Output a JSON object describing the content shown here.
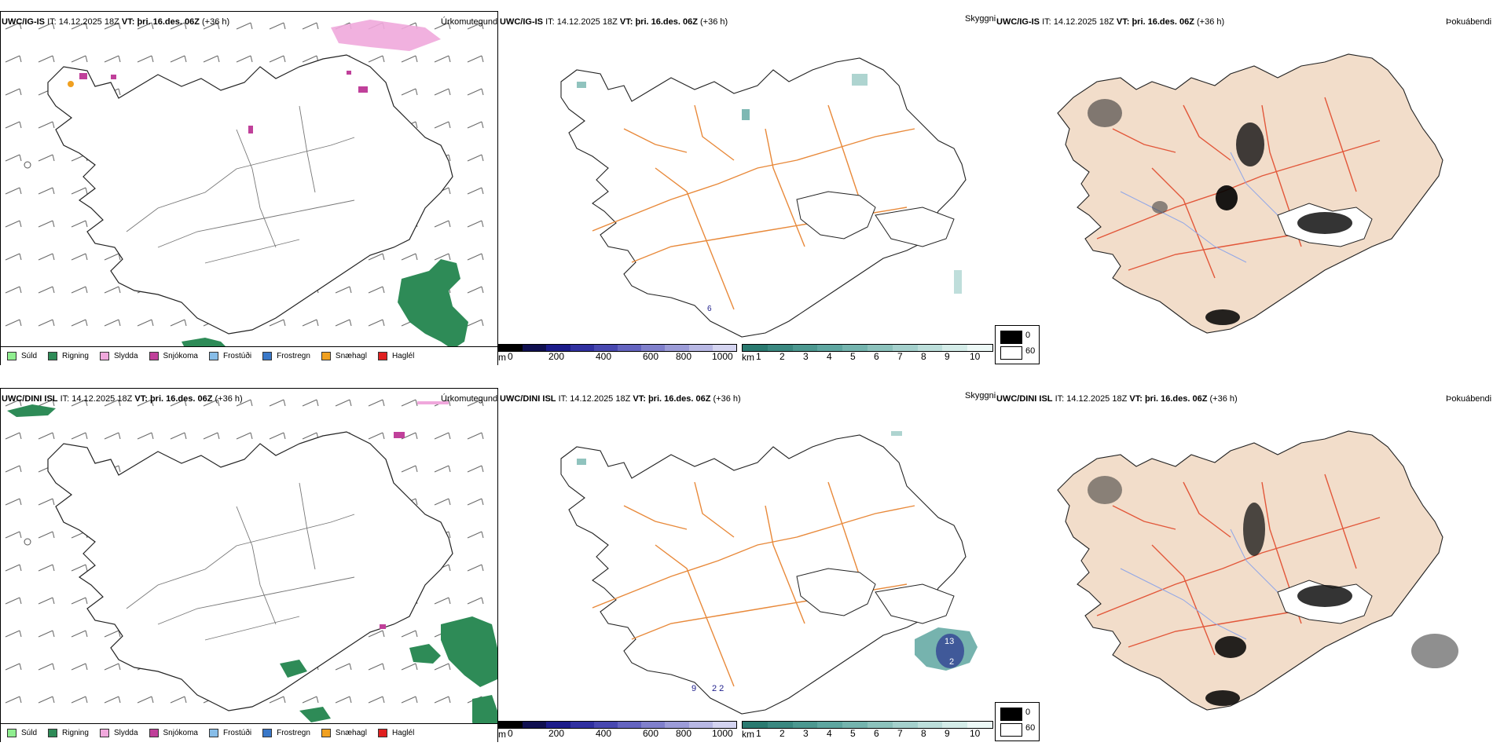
{
  "rows": [
    {
      "model": "UWC/IG-IS",
      "it_label": "IT:",
      "it_value": "14.12.2025 18Z",
      "vt_label": "VT:",
      "vt_value": "þri. 16.des. 06Z",
      "lead": "(+36 h)"
    },
    {
      "model": "UWC/DINI ISL",
      "it_label": "IT:",
      "it_value": "14.12.2025 18Z",
      "vt_label": "VT:",
      "vt_value": "þri. 16.des. 06Z",
      "lead": "(+36 h)"
    }
  ],
  "panel_titles": {
    "precip_type": "Úrkomutegund",
    "visibility": "Skyggni",
    "fog": "Þokuábendi"
  },
  "precip_legend": [
    {
      "label": "Súld",
      "color": "#90ee90"
    },
    {
      "label": "Rigning",
      "color": "#2e8b57"
    },
    {
      "label": "Slydda",
      "color": "#f0a8dc"
    },
    {
      "label": "Snjókoma",
      "color": "#c0409a"
    },
    {
      "label": "Frostúði",
      "color": "#87bde8"
    },
    {
      "label": "Frostregn",
      "color": "#3a78c8"
    },
    {
      "label": "Snæhagl",
      "color": "#f0a020"
    },
    {
      "label": "Haglél",
      "color": "#e02020"
    }
  ],
  "elevation_scale": {
    "unit": "m",
    "ticks": [
      "0",
      "200",
      "400",
      "600",
      "800",
      "1000"
    ],
    "colors": [
      "#000000",
      "#101050",
      "#1c1c8a",
      "#3030a0",
      "#4848b0",
      "#6464c0",
      "#8080cc",
      "#9c9cd8",
      "#b8b8e4",
      "#d4d4f0"
    ]
  },
  "visibility_scale": {
    "unit": "km",
    "ticks": [
      "1",
      "2",
      "3",
      "4",
      "5",
      "6",
      "7",
      "8",
      "9",
      "10"
    ],
    "colors": [
      "#2a7a70",
      "#3a8880",
      "#4c9890",
      "#5ea6a0",
      "#74b4ae",
      "#8cc2bc",
      "#a4d0cc",
      "#bcdeda",
      "#d4ece8",
      "#ecf8f6"
    ]
  },
  "fog_legend": {
    "items": [
      {
        "label": "0",
        "color": "#000000"
      },
      {
        "label": "60",
        "color": "#ffffff"
      }
    ]
  },
  "annotations": {
    "top_vis_small_label": "6",
    "bottom_vis_labels": [
      "13",
      "2",
      "2 2",
      "9"
    ]
  }
}
